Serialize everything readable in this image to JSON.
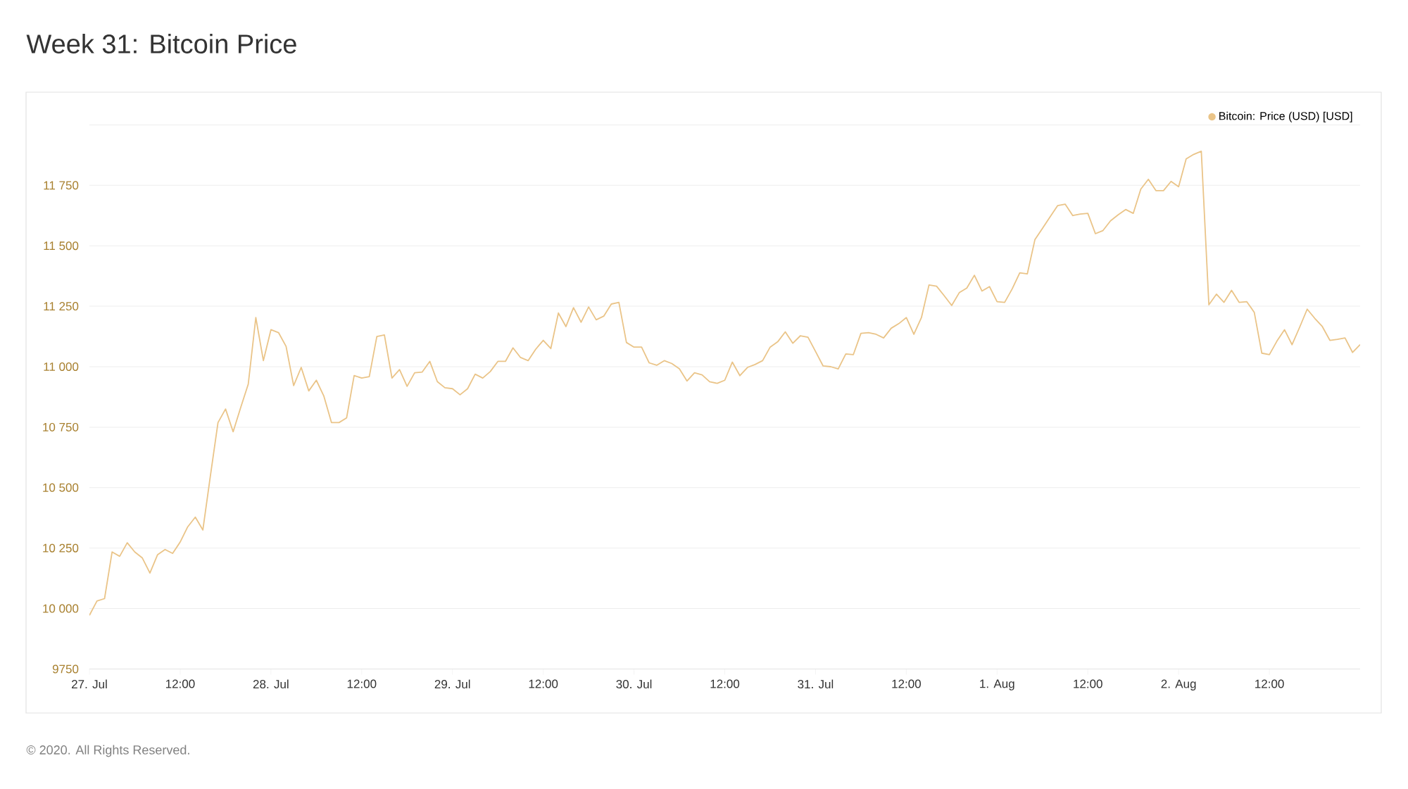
{
  "chart_data": {
    "type": "line",
    "title": "Week 31: Bitcoin Price",
    "x": [
      "2020-07-27T00:00",
      "2020-07-27T01:00",
      "2020-07-27T02:00",
      "2020-07-27T03:00",
      "2020-07-27T04:00",
      "2020-07-27T05:00",
      "2020-07-27T06:00",
      "2020-07-27T07:00",
      "2020-07-27T08:00",
      "2020-07-27T09:00",
      "2020-07-27T10:00",
      "2020-07-27T11:00",
      "2020-07-27T12:00",
      "2020-07-27T13:00",
      "2020-07-27T14:00",
      "2020-07-27T15:00",
      "2020-07-27T16:00",
      "2020-07-27T17:00",
      "2020-07-27T18:00",
      "2020-07-27T19:00",
      "2020-07-27T20:00",
      "2020-07-27T21:00",
      "2020-07-27T22:00",
      "2020-07-27T23:00",
      "2020-07-28T00:00",
      "2020-07-28T01:00",
      "2020-07-28T02:00",
      "2020-07-28T03:00",
      "2020-07-28T04:00",
      "2020-07-28T05:00",
      "2020-07-28T06:00",
      "2020-07-28T07:00",
      "2020-07-28T08:00",
      "2020-07-28T09:00",
      "2020-07-28T10:00",
      "2020-07-28T11:00",
      "2020-07-28T12:00",
      "2020-07-28T13:00",
      "2020-07-28T14:00",
      "2020-07-28T15:00",
      "2020-07-28T16:00",
      "2020-07-28T17:00",
      "2020-07-28T18:00",
      "2020-07-28T19:00",
      "2020-07-28T20:00",
      "2020-07-28T21:00",
      "2020-07-28T22:00",
      "2020-07-28T23:00",
      "2020-07-29T00:00",
      "2020-07-29T01:00",
      "2020-07-29T02:00",
      "2020-07-29T03:00",
      "2020-07-29T04:00",
      "2020-07-29T05:00",
      "2020-07-29T06:00",
      "2020-07-29T07:00",
      "2020-07-29T08:00",
      "2020-07-29T09:00",
      "2020-07-29T10:00",
      "2020-07-29T11:00",
      "2020-07-29T12:00",
      "2020-07-29T13:00",
      "2020-07-29T14:00",
      "2020-07-29T15:00",
      "2020-07-29T16:00",
      "2020-07-29T17:00",
      "2020-07-29T18:00",
      "2020-07-29T19:00",
      "2020-07-29T20:00",
      "2020-07-29T21:00",
      "2020-07-29T22:00",
      "2020-07-29T23:00",
      "2020-07-30T00:00",
      "2020-07-30T01:00",
      "2020-07-30T02:00",
      "2020-07-30T03:00",
      "2020-07-30T04:00",
      "2020-07-30T05:00",
      "2020-07-30T06:00",
      "2020-07-30T07:00",
      "2020-07-30T08:00",
      "2020-07-30T09:00",
      "2020-07-30T10:00",
      "2020-07-30T11:00",
      "2020-07-30T12:00",
      "2020-07-30T13:00",
      "2020-07-30T14:00",
      "2020-07-30T15:00",
      "2020-07-30T16:00",
      "2020-07-30T17:00",
      "2020-07-30T18:00",
      "2020-07-30T19:00",
      "2020-07-30T20:00",
      "2020-07-30T21:00",
      "2020-07-30T22:00",
      "2020-07-30T23:00",
      "2020-07-31T00:00",
      "2020-07-31T01:00",
      "2020-07-31T02:00",
      "2020-07-31T03:00",
      "2020-07-31T04:00",
      "2020-07-31T05:00",
      "2020-07-31T06:00",
      "2020-07-31T07:00",
      "2020-07-31T08:00",
      "2020-07-31T09:00",
      "2020-07-31T10:00",
      "2020-07-31T11:00",
      "2020-07-31T12:00",
      "2020-07-31T13:00",
      "2020-07-31T14:00",
      "2020-07-31T15:00",
      "2020-07-31T16:00",
      "2020-07-31T17:00",
      "2020-07-31T18:00",
      "2020-07-31T19:00",
      "2020-07-31T20:00",
      "2020-07-31T21:00",
      "2020-07-31T22:00",
      "2020-07-31T23:00",
      "2020-08-01T00:00",
      "2020-08-01T01:00",
      "2020-08-01T02:00",
      "2020-08-01T03:00",
      "2020-08-01T04:00",
      "2020-08-01T05:00",
      "2020-08-01T06:00",
      "2020-08-01T07:00",
      "2020-08-01T08:00",
      "2020-08-01T09:00",
      "2020-08-01T10:00",
      "2020-08-01T11:00",
      "2020-08-01T12:00",
      "2020-08-01T13:00",
      "2020-08-01T14:00",
      "2020-08-01T15:00",
      "2020-08-01T16:00",
      "2020-08-01T17:00",
      "2020-08-01T18:00",
      "2020-08-01T19:00",
      "2020-08-01T20:00",
      "2020-08-01T21:00",
      "2020-08-01T22:00",
      "2020-08-01T23:00",
      "2020-08-02T00:00",
      "2020-08-02T01:00",
      "2020-08-02T02:00",
      "2020-08-02T03:00",
      "2020-08-02T04:00",
      "2020-08-02T05:00",
      "2020-08-02T06:00",
      "2020-08-02T07:00",
      "2020-08-02T08:00",
      "2020-08-02T09:00",
      "2020-08-02T10:00",
      "2020-08-02T11:00",
      "2020-08-02T12:00",
      "2020-08-02T13:00",
      "2020-08-02T14:00",
      "2020-08-02T15:00",
      "2020-08-02T16:00",
      "2020-08-02T17:00",
      "2020-08-02T18:00",
      "2020-08-02T19:00",
      "2020-08-02T20:00",
      "2020-08-02T21:00",
      "2020-08-02T22:00",
      "2020-08-02T23:00",
      "2020-08-03T00:00"
    ],
    "series": [
      {
        "name": "Bitcoin: Price (USD) [USD]",
        "color": "#eac488",
        "values": [
          9972,
          10031,
          10041,
          10234,
          10216,
          10272,
          10234,
          10209,
          10147,
          10222,
          10244,
          10228,
          10275,
          10338,
          10378,
          10325,
          10550,
          10769,
          10825,
          10731,
          10831,
          10928,
          11203,
          11025,
          11153,
          11141,
          11084,
          10922,
          10997,
          10900,
          10944,
          10878,
          10769,
          10769,
          10788,
          10963,
          10953,
          10959,
          11125,
          11131,
          10953,
          10988,
          10919,
          10975,
          10978,
          11022,
          10938,
          10913,
          10909,
          10884,
          10909,
          10969,
          10953,
          10980,
          11022,
          11022,
          11078,
          11038,
          11025,
          11072,
          11109,
          11075,
          11222,
          11166,
          11244,
          11184,
          11247,
          11194,
          11209,
          11259,
          11266,
          11100,
          11081,
          11081,
          11016,
          11006,
          11025,
          11013,
          10991,
          10941,
          10975,
          10966,
          10938,
          10931,
          10944,
          11019,
          10963,
          10997,
          11009,
          11025,
          11081,
          11103,
          11144,
          11097,
          11128,
          11122,
          11063,
          11003,
          11000,
          10991,
          11053,
          11050,
          11138,
          11141,
          11134,
          11119,
          11159,
          11178,
          11203,
          11134,
          11203,
          11338,
          11333,
          11294,
          11253,
          11306,
          11325,
          11378,
          11313,
          11331,
          11269,
          11266,
          11322,
          11388,
          11384,
          11525,
          11572,
          11619,
          11666,
          11672,
          11625,
          11631,
          11634,
          11550,
          11563,
          11603,
          11628,
          11650,
          11634,
          11734,
          11775,
          11728,
          11728,
          11766,
          11744,
          11859,
          11878,
          11891,
          11256,
          11300,
          11266,
          11316,
          11266,
          11269,
          11225,
          11056,
          11050,
          11106,
          11153,
          11091,
          11163,
          11238,
          11200,
          11166,
          11109,
          11113,
          11119,
          11059,
          11091
        ]
      }
    ],
    "xlim": [
      "2020-07-27T00:00",
      "2020-08-03T00:00"
    ],
    "ylim": [
      9750,
      12000
    ],
    "xticks": [
      {
        "value": "2020-07-27T00:00",
        "label": "27. Jul"
      },
      {
        "value": "2020-07-27T12:00",
        "label": "12:00"
      },
      {
        "value": "2020-07-28T00:00",
        "label": "28. Jul"
      },
      {
        "value": "2020-07-28T12:00",
        "label": "12:00"
      },
      {
        "value": "2020-07-29T00:00",
        "label": "29. Jul"
      },
      {
        "value": "2020-07-29T12:00",
        "label": "12:00"
      },
      {
        "value": "2020-07-30T00:00",
        "label": "30. Jul"
      },
      {
        "value": "2020-07-30T12:00",
        "label": "12:00"
      },
      {
        "value": "2020-07-31T00:00",
        "label": "31. Jul"
      },
      {
        "value": "2020-07-31T12:00",
        "label": "12:00"
      },
      {
        "value": "2020-08-01T00:00",
        "label": "1. Aug"
      },
      {
        "value": "2020-08-01T12:00",
        "label": "12:00"
      },
      {
        "value": "2020-08-02T00:00",
        "label": "2. Aug"
      },
      {
        "value": "2020-08-02T12:00",
        "label": "12:00"
      }
    ],
    "yticks": [
      9750,
      {
        "value": 10000,
        "label": "10 000"
      },
      {
        "value": 10250,
        "label": "10 250"
      },
      {
        "value": 10500,
        "label": "10 500"
      },
      {
        "value": 10750,
        "label": "10 750"
      },
      {
        "value": 11000,
        "label": "11 000"
      },
      {
        "value": 11250,
        "label": "11 250"
      },
      {
        "value": 11500,
        "label": "11 500"
      },
      {
        "value": 11750,
        "label": "11 750"
      },
      {
        "value": 12000,
        "label": null
      }
    ],
    "grid": "y",
    "legend": "top right",
    "annotations": [
      "© 2020. All Rights Reserved."
    ]
  }
}
